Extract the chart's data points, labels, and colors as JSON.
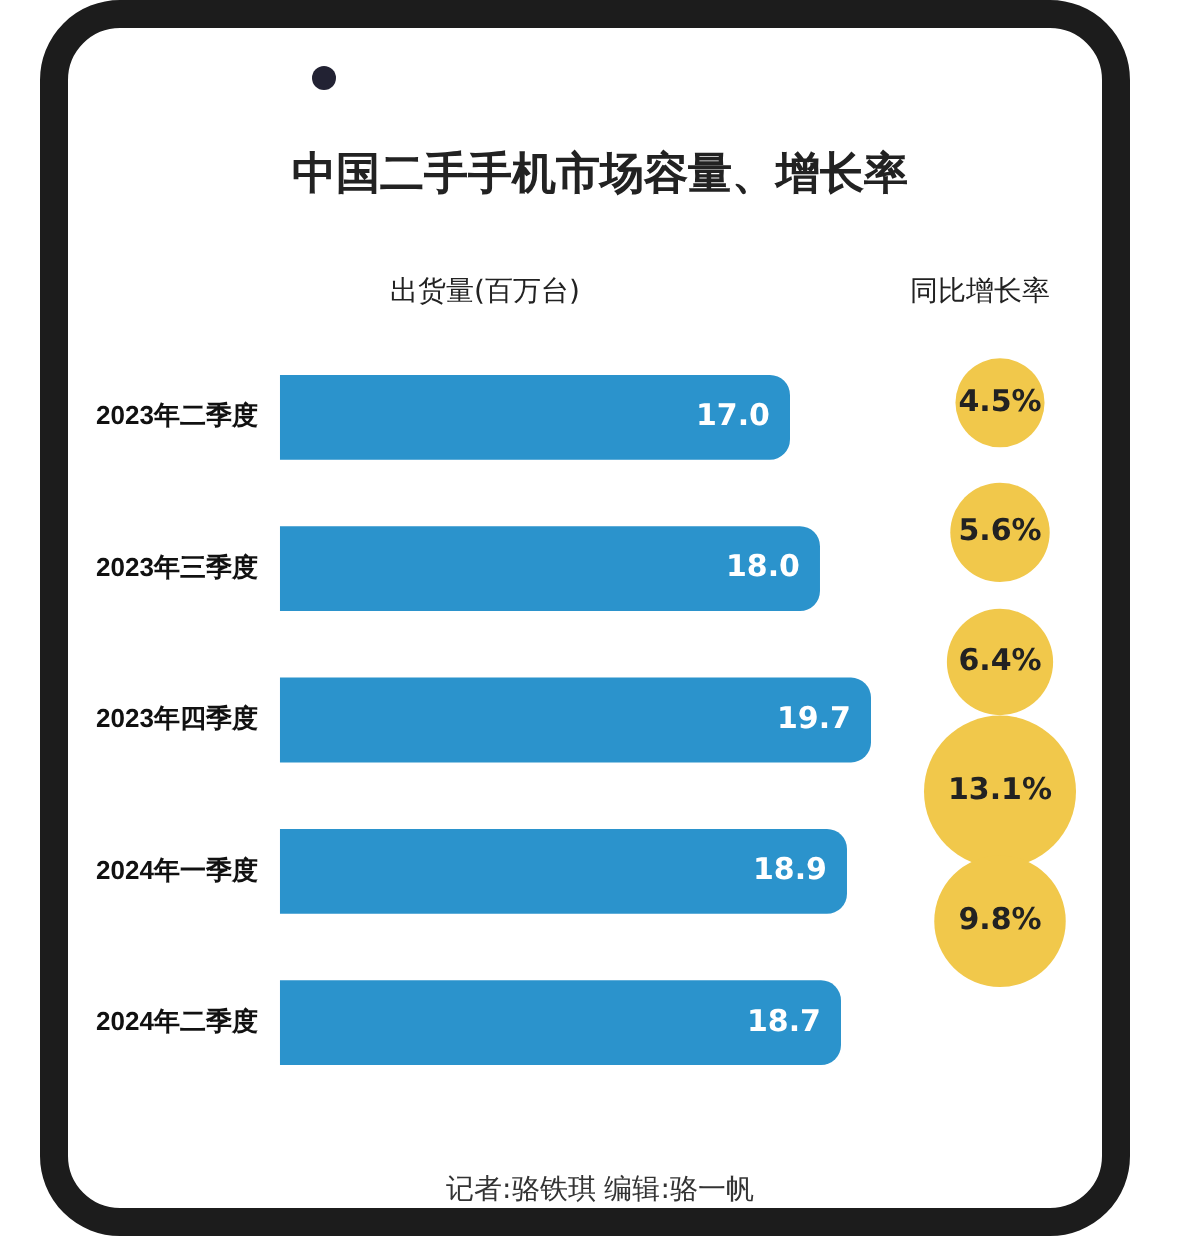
{
  "chart_data": [
    {
      "type": "bar",
      "orientation": "horizontal",
      "title": "中国二手手机市场容量、增长率",
      "xlabel": "出货量(百万台)",
      "categories": [
        "2023年二季度",
        "2023年三季度",
        "2023年四季度",
        "2024年一季度",
        "2024年二季度"
      ],
      "values": [
        17.0,
        18.0,
        19.7,
        18.9,
        18.7
      ],
      "color": "#2b93cc",
      "value_labels": [
        "17.0",
        "18.0",
        "19.7",
        "18.9",
        "18.7"
      ],
      "legend": false,
      "grid": false,
      "annotations": [
        "记者:骆铁琪   编辑:骆一帆"
      ]
    },
    {
      "type": "other",
      "xlabel": "同比增长率",
      "values": [
        4.5,
        5.6,
        6.4,
        13.1,
        9.8
      ],
      "color": "#f1c84b",
      "value_labels": [
        "4.5%",
        "5.6%",
        "6.4%",
        "13.1%",
        "9.8%"
      ],
      "legend": false
    }
  ]
}
